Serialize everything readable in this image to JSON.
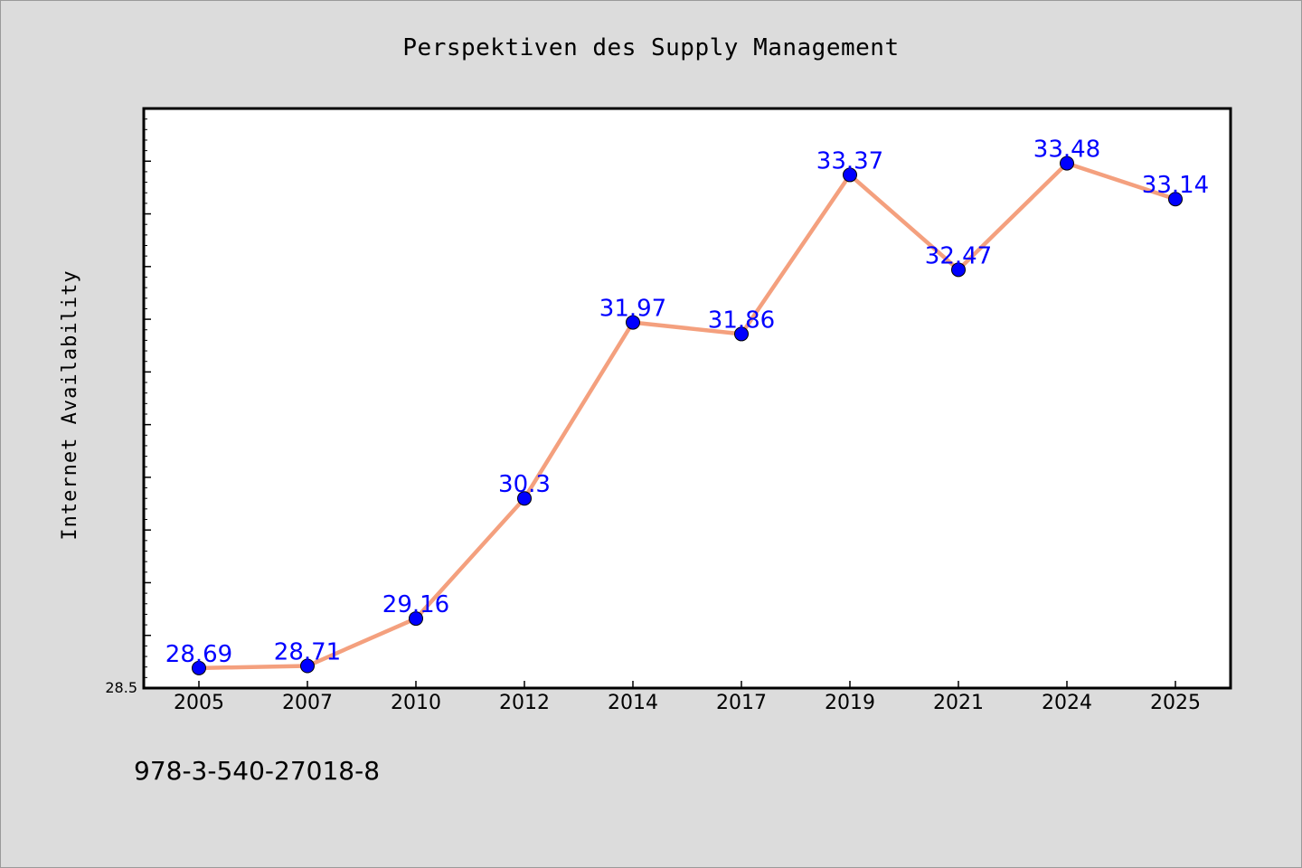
{
  "chart_data": {
    "type": "line",
    "title": "Perspektiven des Supply Management",
    "xlabel": "",
    "ylabel": "Internet Availability",
    "categories": [
      "2005",
      "2007",
      "2010",
      "2012",
      "2014",
      "2017",
      "2019",
      "2021",
      "2024",
      "2025"
    ],
    "values": [
      28.69,
      28.71,
      29.16,
      30.3,
      31.97,
      31.86,
      33.37,
      32.47,
      33.48,
      33.14
    ],
    "data_labels": [
      "28.69",
      "28.71",
      "29.16",
      "30.3",
      "31.97",
      "31.86",
      "33.37",
      "32.47",
      "33.48",
      "33.14"
    ],
    "ylim": [
      28.5,
      34.0
    ],
    "y_min_label": "28.5",
    "grid": false,
    "line_color": "#f4a07e",
    "marker_color": "#0000ff",
    "label_color": "#0000ff",
    "background": "#dcdcdc",
    "plot_background": "#ffffff"
  },
  "footer": {
    "text": "978-3-540-27018-8"
  }
}
